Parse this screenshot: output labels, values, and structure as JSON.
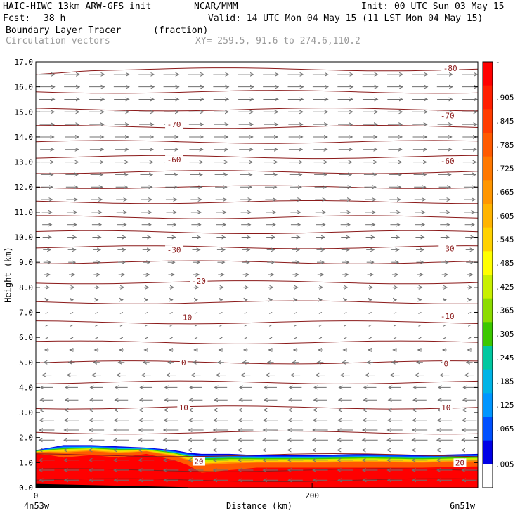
{
  "header": {
    "model": "HAIC-HIWC 13km ARW-GFS init",
    "org": "NCAR/MMM",
    "init": "Init: 00 UTC Sun 03 May 15",
    "fcst_label": "Fcst:",
    "fcst_value": "38 h",
    "valid": "Valid: 14 UTC Mon 04 May 15 (11 LST Mon 04 May 15)",
    "field_name": "Boundary Layer Tracer",
    "field_units": "(fraction)",
    "vector_name": "Circulation vectors",
    "xy_range": "XY= 259.5, 91.6 to 274.6,110.2"
  },
  "axes": {
    "ylabel": "Height (km)",
    "xlabel": "Distance (km)",
    "x_left_label": "4n53w",
    "x_right_label": "6n51w"
  },
  "colors": {
    "contour": "#8b1a1a",
    "vector": "#707070",
    "colorbar_top": "#ff0000",
    "colorbar_bottom": "#ffffff"
  },
  "chart_data": {
    "type": "heatmap",
    "x_range": [
      0,
      320
    ],
    "y_range": [
      0,
      17
    ],
    "x_ticks": [
      0,
      200
    ],
    "y_ticks": [
      0.0,
      1.0,
      2.0,
      3.0,
      4.0,
      5.0,
      6.0,
      7.0,
      8.0,
      9.0,
      10.0,
      11.0,
      12.0,
      13.0,
      14.0,
      15.0,
      16.0,
      17.0
    ],
    "colorbar": {
      "labels": [
        "-",
        ".905",
        ".845",
        ".785",
        ".725",
        ".665",
        ".605",
        ".545",
        ".485",
        ".425",
        ".365",
        ".305",
        ".245",
        ".185",
        ".125",
        ".065",
        ".005"
      ],
      "colors": [
        "#ff0000",
        "#ff1e00",
        "#ff3c00",
        "#ff5a00",
        "#ff7800",
        "#ff9600",
        "#ffb400",
        "#ffd200",
        "#ffff00",
        "#c8f000",
        "#8cdc00",
        "#3cc800",
        "#00c8a0",
        "#00b4e6",
        "#0096ff",
        "#0050ff",
        "#0000e6",
        "#ffffff"
      ]
    },
    "contour_labels": [
      {
        "x": 300,
        "y": 16.75,
        "text": "-80"
      },
      {
        "x": 100,
        "y": 14.5,
        "text": "-70"
      },
      {
        "x": 298,
        "y": 14.85,
        "text": "-70"
      },
      {
        "x": 100,
        "y": 13.1,
        "text": "-60"
      },
      {
        "x": 298,
        "y": 13.05,
        "text": "-60"
      },
      {
        "x": 100,
        "y": 9.5,
        "text": "-30"
      },
      {
        "x": 298,
        "y": 9.55,
        "text": "-30"
      },
      {
        "x": 118,
        "y": 8.25,
        "text": "-20"
      },
      {
        "x": 108,
        "y": 6.8,
        "text": "-10"
      },
      {
        "x": 298,
        "y": 6.85,
        "text": "-10"
      },
      {
        "x": 107,
        "y": 5.0,
        "text": "0"
      },
      {
        "x": 297,
        "y": 4.95,
        "text": "0"
      },
      {
        "x": 107,
        "y": 3.2,
        "text": "10"
      },
      {
        "x": 297,
        "y": 3.2,
        "text": "10"
      },
      {
        "x": 118,
        "y": 1.05,
        "text": "20"
      },
      {
        "x": 307,
        "y": 1.0,
        "text": "20"
      }
    ],
    "contour_levels_y": [
      0.3,
      0.7,
      1.3,
      2.2,
      3.2,
      4.2,
      5.0,
      5.8,
      6.6,
      7.4,
      8.2,
      9.0,
      9.6,
      10.2,
      10.8,
      11.4,
      12.0,
      12.6,
      13.2,
      13.8,
      14.4,
      15.1,
      15.8,
      16.7
    ],
    "tracer_profile": {
      "x": [
        0,
        10,
        20,
        40,
        60,
        80,
        100,
        110,
        120,
        140,
        160,
        200,
        240,
        280,
        320
      ],
      "top_km": [
        1.5,
        1.6,
        1.7,
        1.7,
        1.65,
        1.6,
        1.5,
        1.4,
        1.35,
        1.35,
        1.3,
        1.3,
        1.35,
        1.3,
        1.35
      ],
      "red_top_km": [
        1.35,
        1.3,
        1.2,
        1.3,
        1.2,
        1.35,
        1.1,
        0.9,
        0.6,
        0.7,
        0.8,
        0.8,
        0.8,
        0.8,
        0.85
      ]
    },
    "vector_columns_x": [
      8,
      26,
      44,
      62,
      80,
      98,
      116,
      134,
      152,
      170,
      188,
      206,
      224,
      242,
      260,
      278,
      296,
      314
    ],
    "vector_rows_y": [
      0.3,
      0.7,
      1.1,
      1.5,
      1.9,
      2.3,
      2.7,
      3.1,
      3.5,
      4.0,
      4.5,
      5.0,
      5.5,
      6.0,
      6.5,
      7.0,
      7.5,
      8.0,
      8.5,
      9.0,
      9.5,
      10.0,
      10.5,
      11.0,
      11.5,
      12.0,
      12.5,
      13.0,
      13.5,
      14.0,
      14.5,
      15.0,
      15.5,
      16.0,
      16.5
    ],
    "wind_u_by_height": {
      "y": [
        0,
        1,
        2,
        3,
        4,
        5,
        6,
        7,
        8,
        9,
        10,
        11,
        12,
        13,
        14,
        15,
        16,
        17
      ],
      "u": [
        -0.9,
        -1.0,
        -1.0,
        -0.9,
        -0.8,
        -0.4,
        -0.1,
        0.05,
        0.3,
        0.45,
        0.55,
        0.65,
        0.75,
        0.85,
        0.9,
        0.95,
        1.0,
        1.0
      ]
    }
  }
}
